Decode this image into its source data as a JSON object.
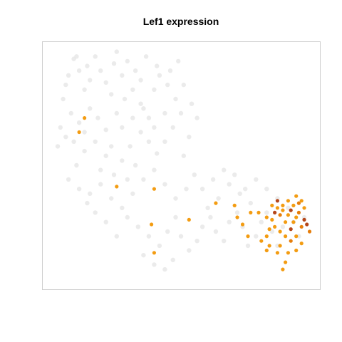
{
  "chart_data": {
    "type": "scatter",
    "title": "Lef1 expression",
    "xlabel": "",
    "ylabel": "",
    "axes_visible": false,
    "grid": false,
    "legend": "none",
    "xlim": [
      0,
      100
    ],
    "ylim": [
      0,
      100
    ],
    "colors": {
      "background_cells": "#e6e6e6",
      "low_expression": "#f39c12",
      "mid_expression": "#e67e0c",
      "high_expression": "#b5461a"
    },
    "background_points": [
      [
        10,
        95
      ],
      [
        12,
        90
      ],
      [
        8,
        88
      ],
      [
        15,
        92
      ],
      [
        18,
        96
      ],
      [
        20,
        90
      ],
      [
        22,
        85
      ],
      [
        25,
        93
      ],
      [
        28,
        88
      ],
      [
        30,
        94
      ],
      [
        33,
        90
      ],
      [
        35,
        86
      ],
      [
        24,
        80
      ],
      [
        14,
        82
      ],
      [
        6,
        78
      ],
      [
        9,
        72
      ],
      [
        12,
        68
      ],
      [
        16,
        74
      ],
      [
        19,
        70
      ],
      [
        22,
        65
      ],
      [
        26,
        72
      ],
      [
        29,
        78
      ],
      [
        32,
        82
      ],
      [
        35,
        76
      ],
      [
        38,
        70
      ],
      [
        40,
        82
      ],
      [
        42,
        88
      ],
      [
        45,
        84
      ],
      [
        48,
        78
      ],
      [
        50,
        72
      ],
      [
        47,
        66
      ],
      [
        44,
        60
      ],
      [
        41,
        55
      ],
      [
        38,
        60
      ],
      [
        35,
        64
      ],
      [
        31,
        58
      ],
      [
        28,
        52
      ],
      [
        25,
        46
      ],
      [
        22,
        54
      ],
      [
        18,
        60
      ],
      [
        14,
        56
      ],
      [
        11,
        50
      ],
      [
        8,
        44
      ],
      [
        12,
        40
      ],
      [
        16,
        38
      ],
      [
        20,
        42
      ],
      [
        24,
        36
      ],
      [
        28,
        32
      ],
      [
        32,
        38
      ],
      [
        36,
        44
      ],
      [
        40,
        48
      ],
      [
        44,
        42
      ],
      [
        48,
        36
      ],
      [
        52,
        40
      ],
      [
        55,
        46
      ],
      [
        51,
        54
      ],
      [
        53,
        62
      ],
      [
        56,
        70
      ],
      [
        54,
        76
      ],
      [
        51,
        84
      ],
      [
        30,
        28
      ],
      [
        34,
        24
      ],
      [
        38,
        20
      ],
      [
        42,
        16
      ],
      [
        45,
        22
      ],
      [
        48,
        28
      ],
      [
        50,
        20
      ],
      [
        53,
        14
      ],
      [
        56,
        18
      ],
      [
        58,
        24
      ],
      [
        61,
        28
      ],
      [
        63,
        22
      ],
      [
        66,
        18
      ],
      [
        68,
        26
      ],
      [
        71,
        30
      ],
      [
        73,
        24
      ],
      [
        75,
        16
      ],
      [
        78,
        20
      ],
      [
        80,
        26
      ],
      [
        76,
        34
      ],
      [
        72,
        38
      ],
      [
        68,
        42
      ],
      [
        64,
        36
      ],
      [
        60,
        32
      ],
      [
        58,
        40
      ],
      [
        62,
        44
      ],
      [
        66,
        48
      ],
      [
        70,
        46
      ],
      [
        74,
        40
      ],
      [
        78,
        44
      ],
      [
        82,
        30
      ],
      [
        84,
        22
      ],
      [
        86,
        16
      ],
      [
        88,
        24
      ],
      [
        90,
        32
      ],
      [
        92,
        26
      ],
      [
        94,
        20
      ],
      [
        96,
        28
      ],
      [
        86,
        36
      ],
      [
        82,
        40
      ],
      [
        36,
        12
      ],
      [
        40,
        8
      ],
      [
        44,
        6
      ],
      [
        47,
        10
      ],
      [
        26,
        20
      ],
      [
        22,
        26
      ],
      [
        18,
        30
      ],
      [
        15,
        34
      ],
      [
        30,
        44
      ],
      [
        33,
        50
      ],
      [
        20,
        48
      ],
      [
        24,
        58
      ],
      [
        28,
        66
      ],
      [
        32,
        70
      ],
      [
        36,
        74
      ],
      [
        40,
        66
      ],
      [
        44,
        72
      ],
      [
        46,
        90
      ],
      [
        49,
        94
      ],
      [
        16,
        86
      ],
      [
        11,
        96
      ],
      [
        26,
        98
      ],
      [
        37,
        96
      ],
      [
        41,
        92
      ],
      [
        7,
        84
      ],
      [
        5,
        66
      ],
      [
        4,
        58
      ],
      [
        7,
        62
      ],
      [
        10,
        60
      ],
      [
        14,
        64
      ]
    ],
    "expressing_points": [
      [
        14,
        70
      ],
      [
        12,
        64
      ],
      [
        26,
        41
      ],
      [
        40,
        40
      ],
      [
        53,
        27
      ],
      [
        63,
        34
      ],
      [
        39,
        25
      ],
      [
        40,
        13
      ],
      [
        70,
        33
      ],
      [
        71,
        28
      ],
      [
        73,
        25
      ],
      [
        75,
        20
      ],
      [
        76,
        30
      ],
      [
        79,
        30
      ],
      [
        82,
        28
      ],
      [
        83,
        23
      ],
      [
        84,
        27
      ],
      [
        85,
        30
      ],
      [
        86,
        32
      ],
      [
        87,
        29
      ],
      [
        88,
        31
      ],
      [
        89,
        26
      ],
      [
        90,
        29
      ],
      [
        91,
        23
      ],
      [
        92,
        26
      ],
      [
        93,
        28
      ],
      [
        94,
        30
      ],
      [
        95,
        24
      ],
      [
        96,
        27
      ],
      [
        97,
        25
      ],
      [
        98,
        22
      ],
      [
        84,
        33
      ],
      [
        86,
        35
      ],
      [
        88,
        33
      ],
      [
        90,
        35
      ],
      [
        92,
        33
      ],
      [
        94,
        34
      ],
      [
        96,
        32
      ],
      [
        85,
        24
      ],
      [
        87,
        22
      ],
      [
        89,
        20
      ],
      [
        91,
        18
      ],
      [
        93,
        20
      ],
      [
        95,
        17
      ],
      [
        87,
        16
      ],
      [
        90,
        13
      ],
      [
        93,
        14
      ],
      [
        89,
        9
      ],
      [
        88,
        6
      ],
      [
        86,
        13
      ],
      [
        82,
        14
      ],
      [
        80,
        18
      ],
      [
        82,
        20
      ],
      [
        83,
        16
      ],
      [
        91,
        31
      ],
      [
        95,
        35
      ],
      [
        93,
        37
      ]
    ],
    "expressing_values": [
      0.3,
      0.3,
      0.3,
      0.3,
      0.3,
      0.3,
      0.3,
      0.3,
      0.3,
      0.3,
      0.4,
      0.3,
      0.4,
      0.3,
      0.5,
      0.6,
      0.4,
      0.9,
      0.5,
      0.7,
      0.5,
      0.6,
      0.5,
      0.9,
      0.6,
      0.4,
      0.8,
      0.7,
      1.0,
      0.9,
      0.7,
      0.4,
      0.9,
      0.5,
      0.6,
      0.5,
      0.7,
      0.4,
      0.6,
      0.5,
      0.4,
      0.8,
      0.6,
      0.5,
      0.4,
      0.5,
      0.4,
      0.5,
      0.6,
      0.4,
      0.4,
      0.4,
      0.5,
      0.6,
      0.9,
      0.6,
      0.4
    ]
  }
}
